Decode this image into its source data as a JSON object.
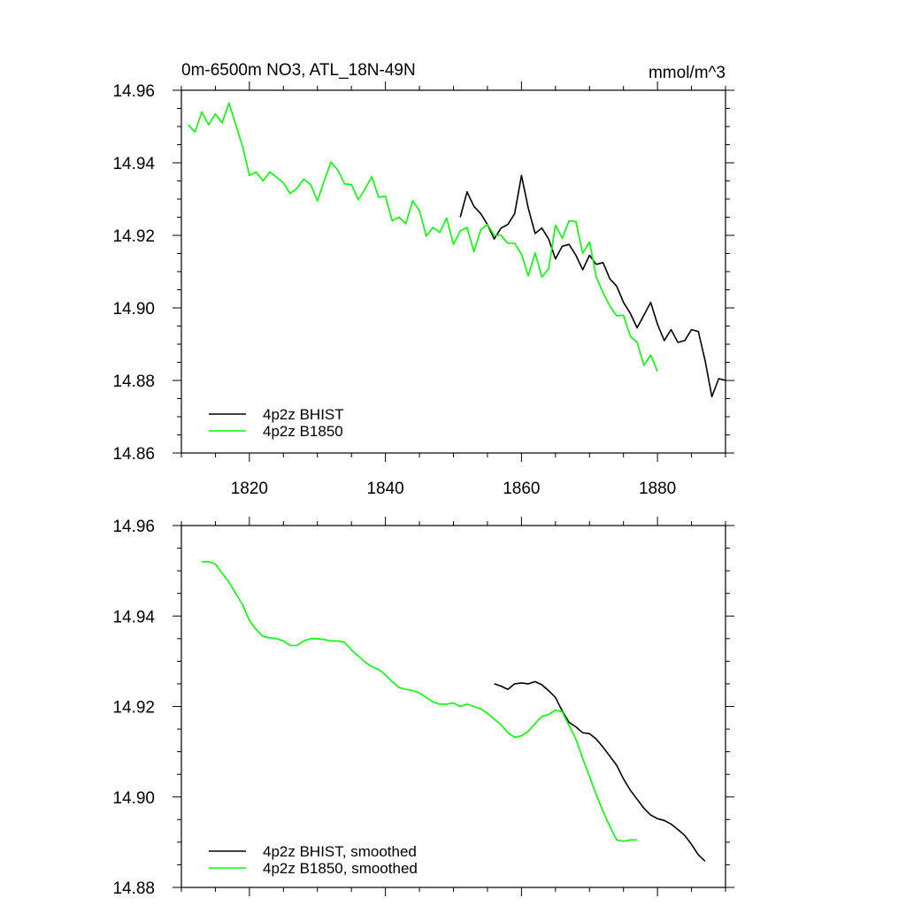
{
  "chart_data": [
    {
      "type": "line",
      "title": "0m-6500m NO3, ATL_18N-49N",
      "units": "mmol/m^3",
      "xlim": [
        1810,
        1890
      ],
      "ylim": [
        14.86,
        14.96
      ],
      "xticks": [
        1820,
        1840,
        1860,
        1880
      ],
      "yticks": [
        14.86,
        14.88,
        14.9,
        14.92,
        14.94,
        14.96
      ],
      "xtick_labels": [
        "1820",
        "1840",
        "1860",
        "1880"
      ],
      "ytick_labels": [
        "14.86",
        "14.88",
        "14.90",
        "14.92",
        "14.94",
        "14.96"
      ],
      "legend_position": "bottom-left",
      "series": [
        {
          "name": "4p2z BHIST",
          "color": "#000000",
          "x": [
            1851,
            1852,
            1853,
            1854,
            1855,
            1856,
            1857,
            1858,
            1859,
            1860,
            1861,
            1862,
            1863,
            1864,
            1865,
            1866,
            1867,
            1868,
            1869,
            1870,
            1871,
            1872,
            1873,
            1874,
            1875,
            1876,
            1877,
            1878,
            1879,
            1880,
            1881,
            1882,
            1883,
            1884,
            1885,
            1886,
            1887,
            1888,
            1889,
            1890
          ],
          "y": [
            14.925,
            14.932,
            14.928,
            14.926,
            14.923,
            14.919,
            14.922,
            14.923,
            14.926,
            14.9365,
            14.9275,
            14.9205,
            14.922,
            14.919,
            14.9135,
            14.917,
            14.9175,
            14.9145,
            14.9105,
            14.9145,
            14.912,
            14.9125,
            14.908,
            14.906,
            14.9015,
            14.8985,
            14.8945,
            14.898,
            14.9015,
            14.8955,
            14.891,
            14.894,
            14.8905,
            14.891,
            14.894,
            14.8935,
            14.8855,
            14.8755,
            14.8805,
            14.88
          ]
        },
        {
          "name": "4p2z B1850",
          "color": "#00ff00",
          "x": [
            1811,
            1812,
            1813,
            1814,
            1815,
            1816,
            1817,
            1818,
            1819,
            1820,
            1821,
            1822,
            1823,
            1824,
            1825,
            1826,
            1827,
            1828,
            1829,
            1830,
            1831,
            1832,
            1833,
            1834,
            1835,
            1836,
            1837,
            1838,
            1839,
            1840,
            1841,
            1842,
            1843,
            1844,
            1845,
            1846,
            1847,
            1848,
            1849,
            1850,
            1851,
            1852,
            1853,
            1854,
            1855,
            1856,
            1857,
            1858,
            1859,
            1860,
            1861,
            1862,
            1863,
            1864,
            1865,
            1866,
            1867,
            1868,
            1869,
            1870,
            1871,
            1872,
            1873,
            1874,
            1875,
            1876,
            1877,
            1878,
            1879,
            1880
          ],
          "y": [
            14.9505,
            14.9485,
            14.954,
            14.9505,
            14.9535,
            14.951,
            14.9565,
            14.9505,
            14.9445,
            14.9365,
            14.9375,
            14.935,
            14.9375,
            14.936,
            14.9345,
            14.9315,
            14.933,
            14.9355,
            14.934,
            14.9295,
            14.935,
            14.9402,
            14.938,
            14.9342,
            14.934,
            14.9298,
            14.9328,
            14.9362,
            14.9305,
            14.9308,
            14.924,
            14.925,
            14.9232,
            14.9295,
            14.9268,
            14.9198,
            14.9222,
            14.9208,
            14.9248,
            14.9175,
            14.9212,
            14.9222,
            14.9155,
            14.9215,
            14.923,
            14.92,
            14.92,
            14.9178,
            14.9178,
            14.9148,
            14.9088,
            14.9152,
            14.9085,
            14.9108,
            14.9228,
            14.9192,
            14.924,
            14.9238,
            14.915,
            14.9182,
            14.9085,
            14.9042,
            14.9005,
            14.8978,
            14.898,
            14.8922,
            14.8905,
            14.8842,
            14.887,
            14.8825
          ]
        }
      ]
    },
    {
      "type": "line",
      "title": "",
      "xlim": [
        1810,
        1890
      ],
      "ylim": [
        14.88,
        14.96
      ],
      "xticks": [
        1820,
        1840,
        1860,
        1880
      ],
      "yticks": [
        14.88,
        14.9,
        14.92,
        14.94,
        14.96
      ],
      "ytick_labels": [
        "14.88",
        "14.90",
        "14.92",
        "14.94",
        "14.96"
      ],
      "legend_position": "bottom-left",
      "series": [
        {
          "name": "4p2z BHIST, smoothed",
          "color": "#000000",
          "x": [
            1856,
            1857,
            1858,
            1859,
            1860,
            1861,
            1862,
            1863,
            1864,
            1865,
            1866,
            1867,
            1868,
            1869,
            1870,
            1871,
            1872,
            1873,
            1874,
            1875,
            1876,
            1877,
            1878,
            1879,
            1880,
            1881,
            1882,
            1883,
            1884,
            1885,
            1886,
            1887
          ],
          "y": [
            14.925,
            14.9245,
            14.9238,
            14.925,
            14.9252,
            14.925,
            14.9255,
            14.9248,
            14.9235,
            14.922,
            14.919,
            14.9165,
            14.9155,
            14.9142,
            14.914,
            14.9128,
            14.911,
            14.909,
            14.907,
            14.904,
            14.9015,
            14.8995,
            14.8975,
            14.896,
            14.8952,
            14.8948,
            14.894,
            14.8928,
            14.8915,
            14.8895,
            14.8872,
            14.8858
          ]
        },
        {
          "name": "4p2z B1850, smoothed",
          "color": "#00ff00",
          "x": [
            1813,
            1814,
            1815,
            1816,
            1817,
            1818,
            1819,
            1820,
            1821,
            1822,
            1823,
            1824,
            1825,
            1826,
            1827,
            1828,
            1829,
            1830,
            1831,
            1832,
            1833,
            1834,
            1835,
            1836,
            1837,
            1838,
            1839,
            1840,
            1841,
            1842,
            1843,
            1844,
            1845,
            1846,
            1847,
            1848,
            1849,
            1850,
            1851,
            1852,
            1853,
            1854,
            1855,
            1856,
            1857,
            1858,
            1859,
            1860,
            1861,
            1862,
            1863,
            1864,
            1865,
            1866,
            1867,
            1868,
            1869,
            1870,
            1871,
            1872,
            1873,
            1874,
            1875,
            1876,
            1877
          ],
          "y": [
            14.952,
            14.952,
            14.9515,
            14.9495,
            14.9475,
            14.945,
            14.9425,
            14.939,
            14.937,
            14.9355,
            14.9352,
            14.935,
            14.9345,
            14.9335,
            14.9335,
            14.9345,
            14.935,
            14.935,
            14.9348,
            14.9345,
            14.9345,
            14.9342,
            14.9325,
            14.9312,
            14.9298,
            14.9288,
            14.9282,
            14.927,
            14.9255,
            14.9242,
            14.9238,
            14.9235,
            14.923,
            14.922,
            14.921,
            14.9205,
            14.9205,
            14.9208,
            14.92,
            14.9205,
            14.92,
            14.9195,
            14.9185,
            14.9172,
            14.916,
            14.9142,
            14.9132,
            14.9135,
            14.9145,
            14.9162,
            14.9178,
            14.9182,
            14.9192,
            14.9188,
            14.9158,
            14.9128,
            14.9085,
            14.9045,
            14.9005,
            14.8968,
            14.8935,
            14.8905,
            14.8902,
            14.8905,
            14.8905
          ]
        }
      ]
    }
  ]
}
